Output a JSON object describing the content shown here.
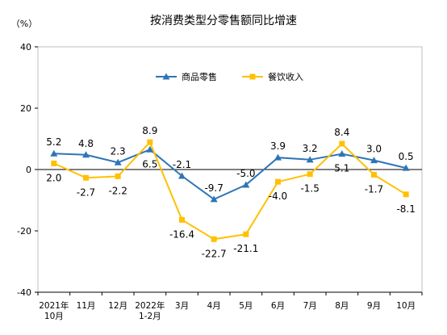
{
  "chart_data": {
    "type": "line",
    "title": "按消费类型分零售额同比增速",
    "unit_label": "（%）",
    "ylim": [
      -40,
      40
    ],
    "yticks": [
      40,
      20,
      0,
      -20,
      -40
    ],
    "categories": [
      [
        "2021年",
        "10月"
      ],
      [
        "11月"
      ],
      [
        "12月"
      ],
      [
        "2022年",
        "1-2月"
      ],
      [
        "3月"
      ],
      [
        "4月"
      ],
      [
        "5月"
      ],
      [
        "6月"
      ],
      [
        "7月"
      ],
      [
        "8月"
      ],
      [
        "9月"
      ],
      [
        "10月"
      ]
    ],
    "series": [
      {
        "name": "商品零售",
        "color": "#2e75b6",
        "marker": "triangle",
        "values": [
          5.2,
          4.8,
          2.3,
          6.5,
          -2.1,
          -9.7,
          -5.0,
          3.9,
          3.2,
          5.1,
          3.0,
          0.5
        ],
        "labels": [
          "5.2",
          "4.8",
          "2.3",
          "6.5",
          "-2.1",
          "-9.7",
          "-5.0",
          "3.9",
          "3.2",
          "5.1",
          "3.0",
          "0.5"
        ]
      },
      {
        "name": "餐饮收入",
        "color": "#ffc000",
        "marker": "square",
        "values": [
          2.0,
          -2.7,
          -2.2,
          8.9,
          -16.4,
          -22.7,
          -21.1,
          -4.0,
          -1.5,
          8.4,
          -1.7,
          -8.1
        ],
        "labels": [
          "2.0",
          "-2.7",
          "-2.2",
          "8.9",
          "-16.4",
          "-22.7",
          "-21.1",
          "-4.0",
          "-1.5",
          "8.4",
          "-1.7",
          "-8.1"
        ]
      }
    ],
    "legend_position": "top-right",
    "grid": false
  }
}
